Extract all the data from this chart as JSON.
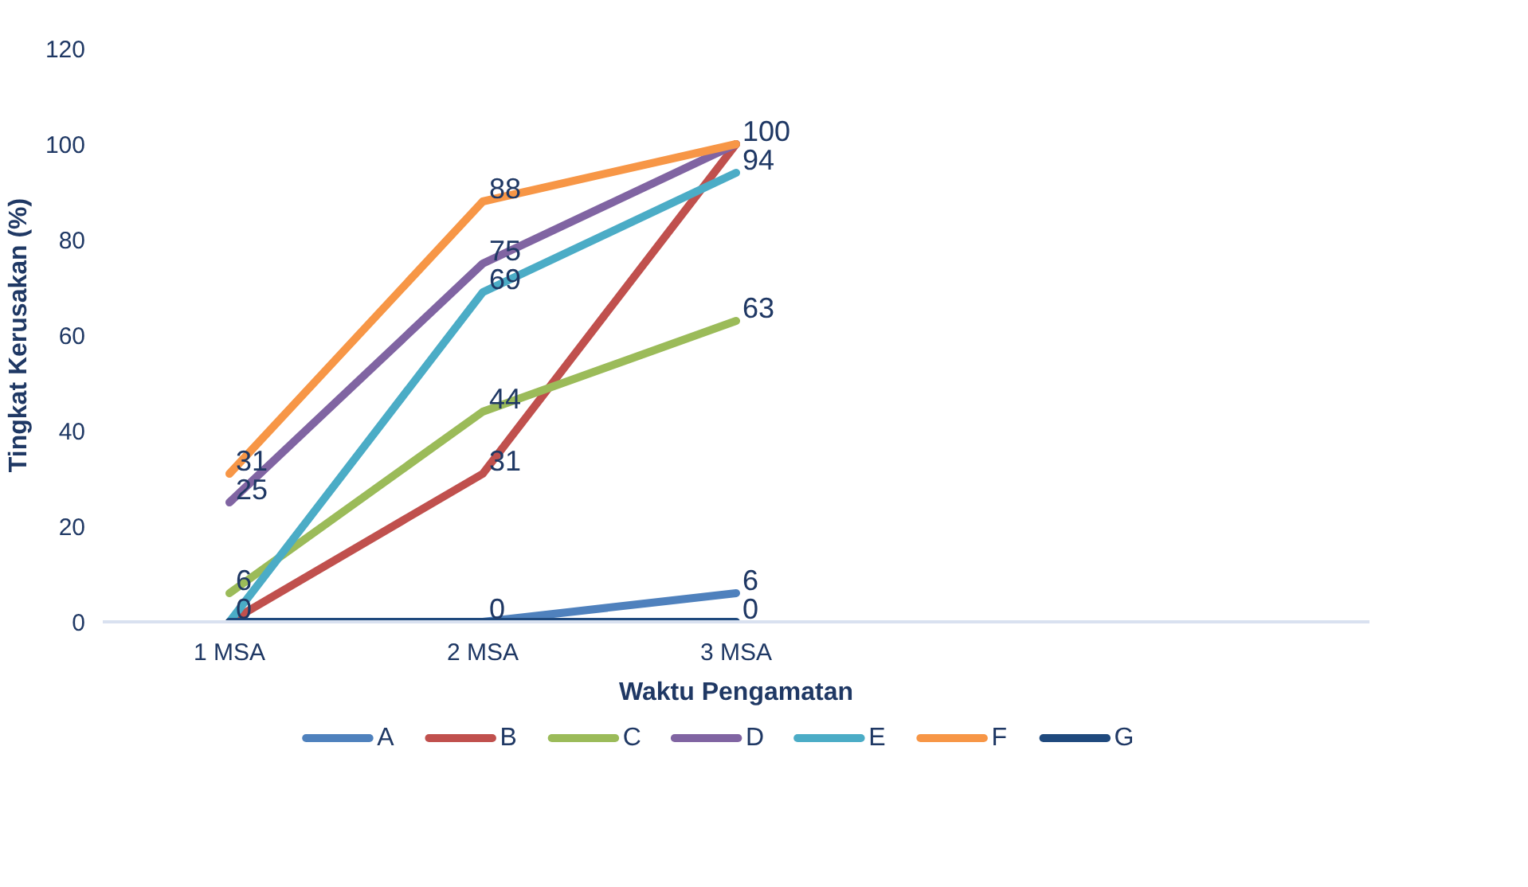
{
  "chart_data": {
    "type": "line",
    "xlabel": "Waktu Pengamatan",
    "ylabel": "Tingkat Kerusakan (%)",
    "categories": [
      "1 MSA",
      "2 MSA",
      "3 MSA",
      null,
      null
    ],
    "series": [
      {
        "name": "A",
        "color": "#4f81bd",
        "values": [
          0,
          0,
          6,
          null,
          null
        ],
        "value_labels": [
          null,
          null,
          "6",
          null,
          null
        ]
      },
      {
        "name": "B",
        "color": "#c0504d",
        "values": [
          0,
          31,
          100,
          null,
          null
        ],
        "value_labels": [
          null,
          "31",
          null,
          null,
          null
        ]
      },
      {
        "name": "C",
        "color": "#9bbb59",
        "values": [
          6,
          44,
          63,
          null,
          null
        ],
        "value_labels": [
          "6",
          "44",
          "63",
          null,
          null
        ]
      },
      {
        "name": "D",
        "color": "#8064a2",
        "values": [
          25,
          75,
          100,
          null,
          null
        ],
        "value_labels": [
          "25",
          "75",
          null,
          null,
          null
        ]
      },
      {
        "name": "E",
        "color": "#4bacc6",
        "values": [
          0,
          69,
          94,
          null,
          null
        ],
        "value_labels": [
          null,
          "69",
          "94",
          null,
          null
        ]
      },
      {
        "name": "F",
        "color": "#f79646",
        "values": [
          31,
          88,
          100,
          null,
          null
        ],
        "value_labels": [
          "31",
          "88",
          "100",
          null,
          null
        ]
      },
      {
        "name": "G",
        "color": "#1f497d",
        "values": [
          0,
          0,
          0,
          null,
          null
        ],
        "value_labels": [
          "0",
          "0",
          "0",
          null,
          null
        ]
      }
    ],
    "ylim": [
      0,
      120
    ],
    "yticks": [
      0,
      20,
      40,
      60,
      80,
      100,
      120
    ],
    "legend": "bottom",
    "line_style": "solid"
  }
}
